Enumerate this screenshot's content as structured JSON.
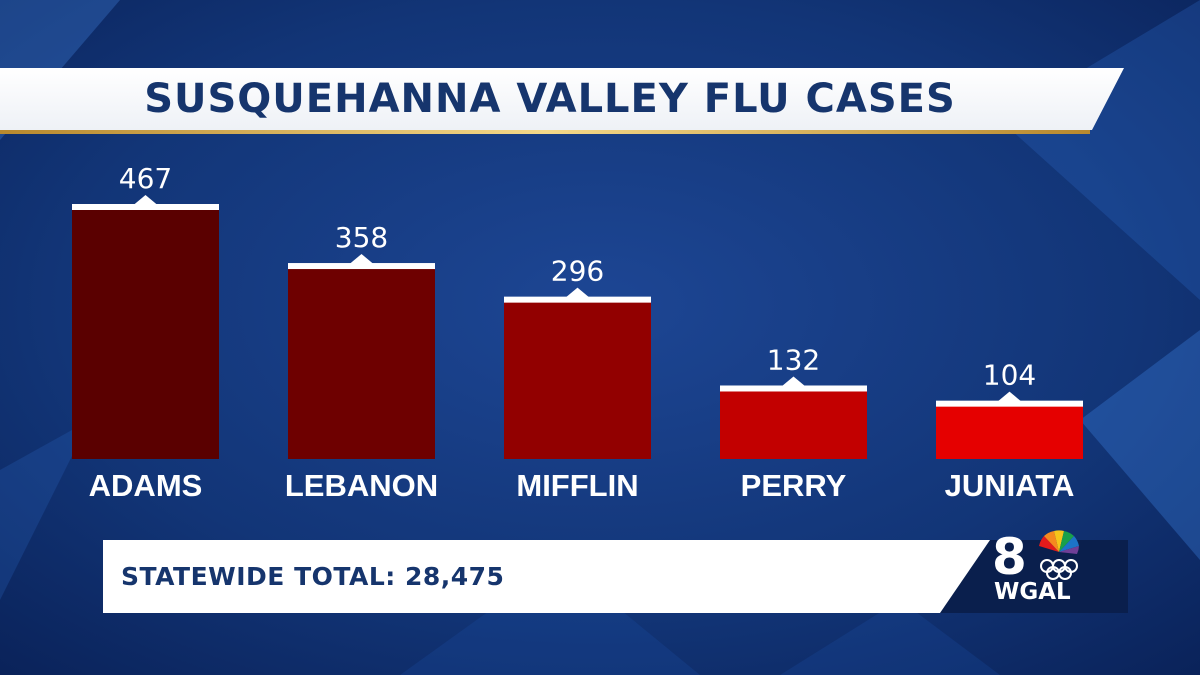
{
  "header": {
    "title": "SUSQUEHANNA VALLEY FLU CASES"
  },
  "footer": {
    "total_text": "STATEWIDE TOTAL: 28,475"
  },
  "logo": {
    "channel": "8",
    "station": "WGAL",
    "icon": "peacock-olympic-rings-icon"
  },
  "colors": {
    "bar_shades": [
      "#5a0000",
      "#6e0000",
      "#920000",
      "#c20000",
      "#e50000"
    ],
    "title_text": "#16356d",
    "background": "#0d2a66"
  },
  "chart_data": {
    "type": "bar",
    "categories": [
      "ADAMS",
      "LEBANON",
      "MIFFLIN",
      "PERRY",
      "JUNIATA"
    ],
    "values": [
      467,
      358,
      296,
      132,
      104
    ],
    "title": "SUSQUEHANNA VALLEY FLU CASES",
    "xlabel": "",
    "ylabel": "",
    "ylim": [
      0,
      467
    ],
    "grid": false,
    "legend": "none"
  }
}
